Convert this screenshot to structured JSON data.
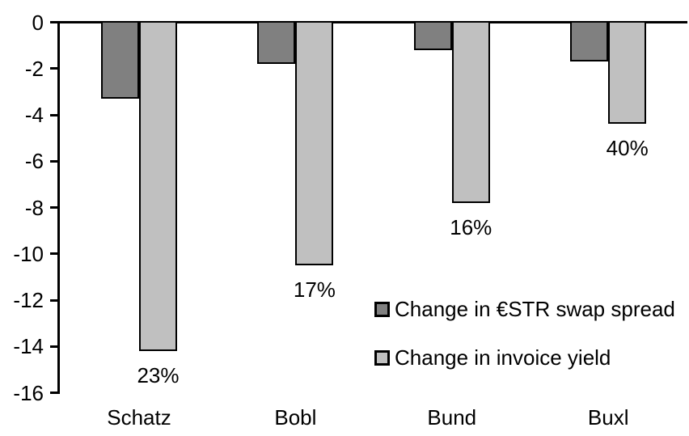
{
  "chart_data": {
    "type": "bar",
    "orientation": "vertical-grouped",
    "categories": [
      "Schatz",
      "Bobl",
      "Bund",
      "Buxl"
    ],
    "series": [
      {
        "name": "Change in €STR swap spread",
        "color": "#808080",
        "values": [
          -3.3,
          -1.8,
          -1.2,
          -1.7
        ]
      },
      {
        "name": "Change in invoice yield",
        "color": "#c0c0c0",
        "values": [
          -14.2,
          -10.5,
          -7.8,
          -4.4
        ],
        "point_labels": [
          "23%",
          "17%",
          "16%",
          "40%"
        ]
      }
    ],
    "title": "",
    "xlabel": "",
    "ylabel": "",
    "ylim": [
      -16,
      0
    ],
    "y_ticks": [
      0,
      -2,
      -4,
      -6,
      -8,
      -10,
      -12,
      -14,
      -16
    ],
    "grid": false,
    "legend_position": "inside-middle-right",
    "axis_color": "#000000",
    "bar_border_color": "#000000"
  }
}
